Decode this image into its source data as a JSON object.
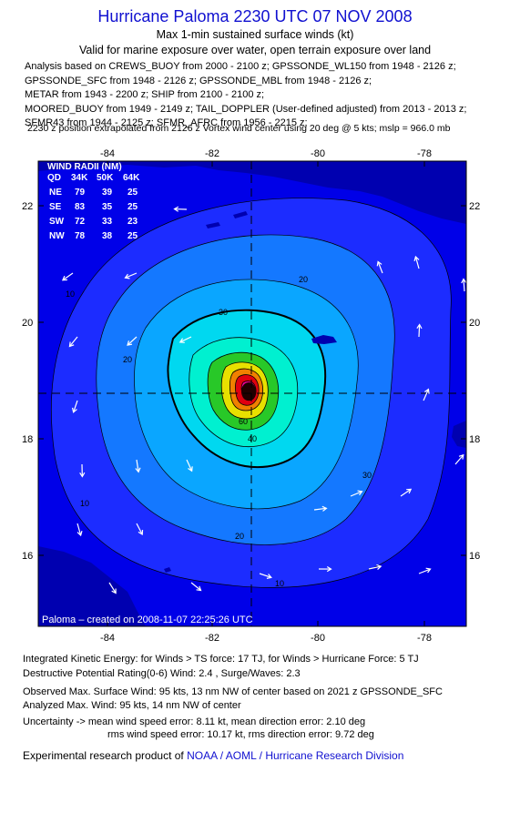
{
  "header": {
    "title": "Hurricane Paloma 2230 UTC 07 NOV 2008",
    "subtitle": "Max 1-min sustained surface winds (kt)",
    "validity": "Valid for marine exposure over water, open terrain exposure over land"
  },
  "analysis_lines": [
    "Analysis based on  CREWS_BUOY from 2000 - 2100 z;  GPSSONDE_WL150 from 1948 - 2126 z;",
    "GPSSONDE_SFC from 1948 - 2126 z;  GPSSONDE_MBL from 1948 - 2126 z;",
    "METAR from 1943 - 2200 z;  SHIP from 2100 - 2100 z;",
    "MOORED_BUOY from 1949 - 2149 z;  TAIL_DOPPLER (User-defined adjusted) from 2013 - 2013 z;",
    "SFMR43 from 1944 - 2125 z;  SFMR_AFRC from 1956 - 2215 z;"
  ],
  "position_note": "2230 z position extrapolated from 2126 z Vortex wind center using 20 deg @ 5 kts; mslp = 966.0 mb",
  "map": {
    "lon_ticks": [
      "-84",
      "-82",
      "-80",
      "-78"
    ],
    "lat_ticks": [
      "22",
      "20",
      "18",
      "16"
    ],
    "contour_labels": [
      "10",
      "20",
      "30",
      "40",
      "60",
      "20",
      "10",
      "20",
      "30",
      "10"
    ],
    "credit": "Paloma  –  created on 2008-11-07 22:25:26 UTC",
    "colors": {
      "ocean": "#0000e8",
      "ring_blue": "#1c2cff",
      "ring_light": "#1478ff",
      "ring_sky": "#0aa6ff",
      "ring_cyan": "#00d8f0",
      "ring_aqua": "#00f0d0",
      "ring_green": "#28c828",
      "ring_yellow": "#e8e000",
      "ring_orange": "#f08000",
      "ring_red": "#e00010",
      "core": "#ff00a0",
      "land": "#0000b0"
    }
  },
  "wind_radii": {
    "title": "WIND RADII (NM)",
    "header": [
      "QD",
      "34K",
      "50K",
      "64K"
    ],
    "rows": [
      [
        "NE",
        "79",
        "39",
        "25"
      ],
      [
        "SE",
        "83",
        "35",
        "25"
      ],
      [
        "SW",
        "72",
        "33",
        "23"
      ],
      [
        "NW",
        "78",
        "38",
        "25"
      ]
    ]
  },
  "stats": {
    "ike": "Integrated Kinetic Energy:  for Winds > TS force: 17 TJ,  for Winds > Hurricane Force: 5 TJ",
    "dpr": "Destructive Potential Rating(0-6)   Wind: 2.4 , Surge/Waves: 2.3",
    "observed": "Observed Max. Surface Wind: 95 kts, 13 nm NW of center based on 2021 z GPSSONDE_SFC",
    "analyzed": "Analyzed Max. Wind: 95 kts, 14 nm NW of center",
    "uncertainty1": "Uncertainty -> mean wind speed error: 8.11 kt,   mean direction error: 2.10 deg",
    "uncertainty2": "rms wind speed error: 10.17 kt,   rms direction error: 9.72 deg"
  },
  "footer": {
    "prefix": "Experimental research product of ",
    "link": "NOAA / AOML / Hurricane Research Division"
  }
}
